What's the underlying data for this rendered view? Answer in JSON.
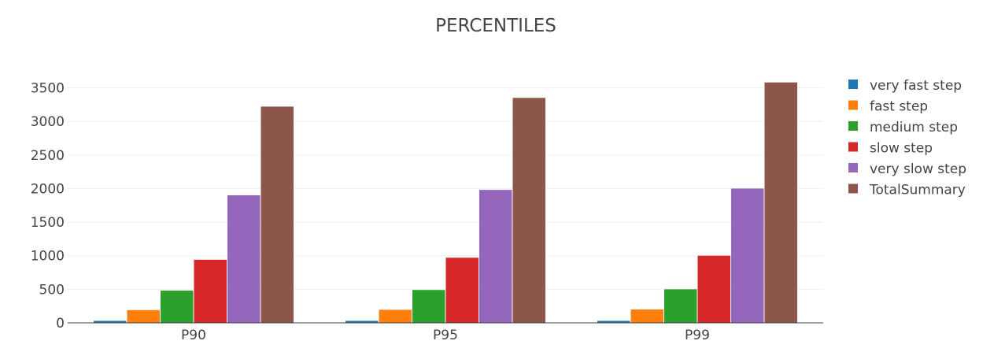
{
  "chart_data": {
    "type": "bar",
    "title": "PERCENTILES",
    "xlabel": "",
    "ylabel": "",
    "categories": [
      "P90",
      "P95",
      "P99"
    ],
    "ylim": [
      0,
      3700
    ],
    "yticks": [
      "0",
      "500",
      "1000",
      "1500",
      "2000",
      "2500",
      "3000",
      "3500"
    ],
    "ytick_values": [
      0,
      500,
      1000,
      1500,
      2000,
      2500,
      3000,
      3500
    ],
    "grid": true,
    "legend_position": "right",
    "series": [
      {
        "name": "very fast step",
        "color": "#1f77b4",
        "values": [
          30,
          30,
          30
        ]
      },
      {
        "name": "fast step",
        "color": "#ff7f0e",
        "values": [
          190,
          195,
          200
        ]
      },
      {
        "name": "medium step",
        "color": "#2ca02c",
        "values": [
          480,
          490,
          500
        ]
      },
      {
        "name": "slow step",
        "color": "#d62728",
        "values": [
          940,
          970,
          1000
        ]
      },
      {
        "name": "very slow step",
        "color": "#9467bd",
        "values": [
          1900,
          1980,
          2000
        ]
      },
      {
        "name": "TotalSummary",
        "color": "#8c564b",
        "values": [
          3220,
          3350,
          3580
        ]
      }
    ]
  }
}
